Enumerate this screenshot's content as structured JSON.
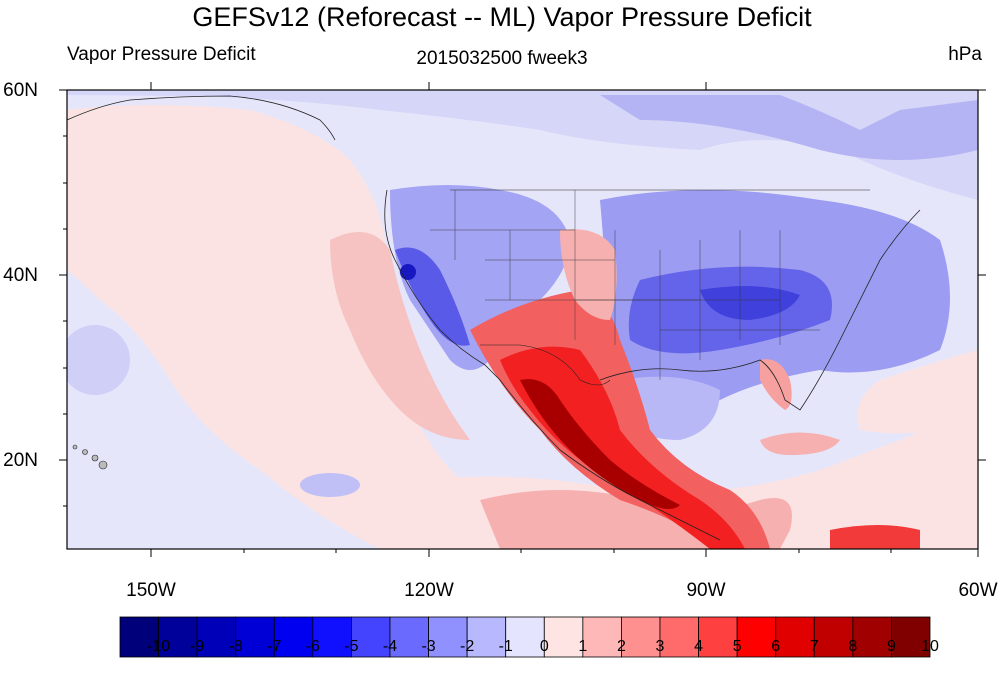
{
  "title": "GEFSv12 (Reforecast -- ML) Vapor Pressure Deficit",
  "subtitle_left": "Vapor Pressure Deficit",
  "subtitle_center": "2015032500 fweek3",
  "subtitle_right": "hPa",
  "lat_labels": [
    "60N",
    "40N",
    "20N"
  ],
  "lon_labels": [
    "150W",
    "120W",
    "90W",
    "60W"
  ],
  "colorbar": {
    "labels": [
      "-10",
      "-9",
      "-8",
      "-7",
      "-6",
      "-5",
      "-4",
      "-3",
      "-2",
      "-1",
      "0",
      "1",
      "2",
      "3",
      "4",
      "5",
      "6",
      "7",
      "8",
      "9",
      "10"
    ],
    "colors": [
      "#00007a",
      "#00009a",
      "#0000b8",
      "#0000d6",
      "#0000f0",
      "#1010ff",
      "#4444ff",
      "#6a6aff",
      "#9090ff",
      "#b8b8ff",
      "#e4e4ff",
      "#ffe4e4",
      "#ffb8b8",
      "#ff9090",
      "#ff6a6a",
      "#ff4040",
      "#ff0000",
      "#e00000",
      "#c00000",
      "#a00000",
      "#800000"
    ]
  },
  "colors": {
    "ocean_neutral": "#e6e6fb",
    "positive_light": "#fbe3e3",
    "positive_mid": "#f7b0b0",
    "positive_strong": "#f23a3a",
    "positive_max": "#a80000",
    "negative_light": "#c8c8fb",
    "negative_mid": "#8c8cf0",
    "negative_strong": "#4a4ae6",
    "negative_max": "#1818c0"
  }
}
